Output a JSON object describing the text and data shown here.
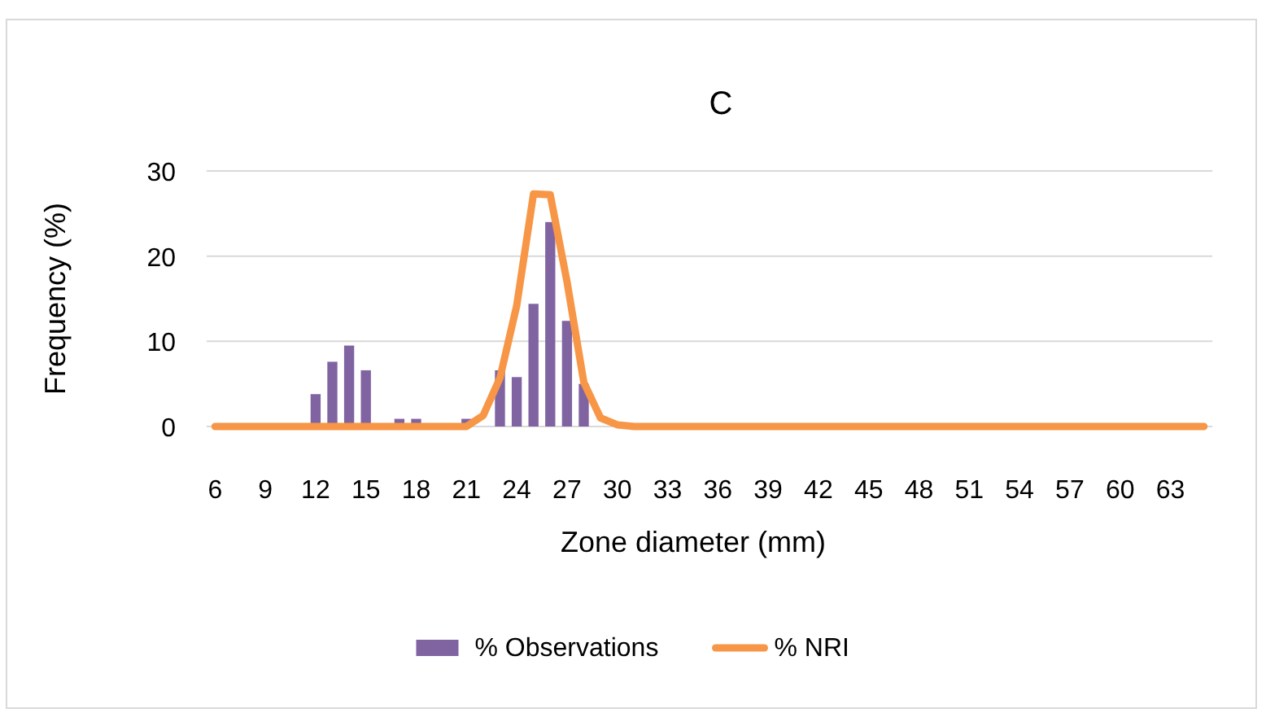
{
  "chart_data": {
    "type": "bar",
    "title": "C",
    "xlabel": "Zone diameter (mm)",
    "ylabel": "Frequency (%)",
    "categories": [
      "6",
      null,
      null,
      "9",
      null,
      null,
      "12",
      null,
      null,
      "15",
      null,
      null,
      "18",
      null,
      null,
      "21",
      null,
      null,
      "24",
      null,
      null,
      "27",
      null,
      null,
      "30",
      null,
      null,
      "33",
      null,
      null,
      "36",
      null,
      null,
      "39",
      null,
      null,
      "42",
      null,
      null,
      "45",
      null,
      null,
      "48",
      null,
      null,
      "51",
      null,
      null,
      "54",
      null,
      null,
      "57",
      null,
      null,
      "60",
      null,
      null,
      "63",
      null,
      null
    ],
    "series": [
      {
        "name": "% Observations",
        "color": "#8064a2",
        "values": [
          0,
          0,
          0,
          0,
          0,
          0,
          3.8,
          7.6,
          9.5,
          6.6,
          0,
          0.9,
          0.9,
          0,
          0,
          0.9,
          0,
          6.6,
          5.8,
          14.4,
          24,
          12.4,
          5,
          0,
          0,
          0,
          0,
          0,
          0,
          0,
          0,
          0,
          0,
          0,
          0,
          0,
          0,
          0,
          0,
          0,
          0,
          0,
          0,
          0,
          0,
          0,
          0,
          0,
          0,
          0,
          0,
          0,
          0,
          0,
          0,
          0,
          0,
          0,
          0,
          0
        ]
      },
      {
        "name": "% NRI",
        "type": "line",
        "color": "#f79646",
        "values": [
          0,
          0,
          0,
          0,
          0,
          0,
          0,
          0,
          0,
          0,
          0,
          0,
          0,
          0,
          0,
          0,
          1.3,
          5.7,
          14.2,
          27.3,
          27.2,
          17,
          5.2,
          1,
          0.2,
          0,
          0,
          0,
          0,
          0,
          0,
          0,
          0,
          0,
          0,
          0,
          0,
          0,
          0,
          0,
          0,
          0,
          0,
          0,
          0,
          0,
          0,
          0,
          0,
          0,
          0,
          0,
          0,
          0,
          0,
          0,
          0,
          0,
          0,
          0
        ]
      }
    ],
    "ylim": [
      0,
      30
    ],
    "yticks": [
      0,
      10,
      20,
      30
    ],
    "grid": "y",
    "legend": "bottom"
  }
}
